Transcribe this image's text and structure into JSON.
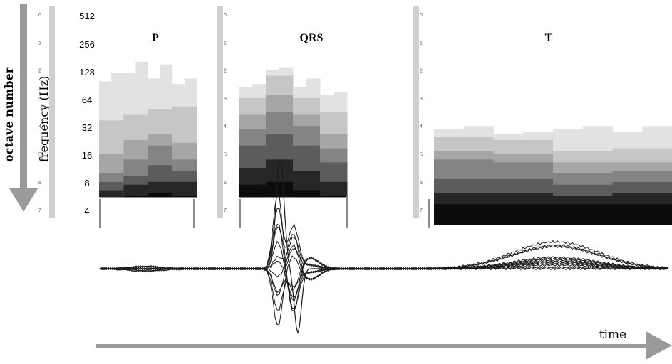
{
  "axes": {
    "octave_label": "octave number",
    "frequency_label": "frequency (Hz)",
    "time_label": "time"
  },
  "frequency_ticks": [
    "512",
    "256",
    "128",
    "64",
    "32",
    "16",
    "8",
    "4"
  ],
  "octave_ticks": [
    "0",
    "1",
    "2",
    "3",
    "4",
    "5",
    "6",
    "7"
  ],
  "segments": [
    {
      "title": "P",
      "columns": [
        {
          "bands": [
            3.8,
            5.0,
            5.7,
            6.0,
            6.3,
            6.6
          ],
          "top_edge": [
            2.1,
            2.4
          ]
        },
        {
          "bands": [
            3.6,
            4.5,
            5.2,
            5.8,
            6.1,
            6.5
          ],
          "top_edge": [
            1.7,
            2.1
          ]
        },
        {
          "bands": [
            3.4,
            4.3,
            4.7,
            5.4,
            6.0,
            6.4
          ],
          "top_edge": [
            1.8,
            2.3
          ]
        },
        {
          "bands": [
            3.3,
            4.6,
            5.2,
            5.6,
            6.0,
            6.5
          ],
          "top_edge": [
            2.3,
            2.5
          ]
        }
      ]
    },
    {
      "title": "QRS",
      "columns": [
        {
          "bands": [
            3.0,
            3.6,
            4.1,
            4.7,
            5.5,
            6.1
          ],
          "top_edge": [
            2.5,
            2.6
          ]
        },
        {
          "bands": [
            2.2,
            2.9,
            3.5,
            4.3,
            5.2,
            6.0
          ],
          "top_edge": [
            1.9,
            2.0
          ]
        },
        {
          "bands": [
            3.0,
            3.6,
            4.0,
            4.7,
            5.6,
            6.3
          ],
          "top_edge": [
            2.3,
            2.6
          ]
        },
        {
          "bands": [
            3.5,
            4.3,
            4.8,
            5.3,
            6.0,
            6.5
          ],
          "top_edge": [
            2.8,
            2.9
          ]
        }
      ]
    },
    {
      "title": "T",
      "columns": [
        {
          "bands": [
            4.4,
            4.9,
            5.2,
            5.9,
            6.4,
            6.8
          ],
          "top_edge": [
            4.0,
            4.1
          ]
        },
        {
          "bands": [
            4.5,
            5.0,
            5.3,
            5.9,
            6.4,
            6.8
          ],
          "top_edge": [
            4.2,
            4.3
          ]
        },
        {
          "bands": [
            4.9,
            5.3,
            5.7,
            6.1,
            6.5,
            6.8
          ],
          "top_edge": [
            4.0,
            4.1
          ]
        },
        {
          "bands": [
            4.8,
            5.3,
            5.6,
            6.0,
            6.4,
            6.8
          ],
          "top_edge": [
            4.0,
            4.2
          ]
        }
      ]
    }
  ],
  "colors": {
    "arrow": "#9a9a9a",
    "band_shades": [
      "#e2e2e2",
      "#c6c6c6",
      "#a6a6a6",
      "#848484",
      "#5c5c5c",
      "#262626",
      "#0c0c0c"
    ],
    "trace": "#1a1a1a"
  }
}
